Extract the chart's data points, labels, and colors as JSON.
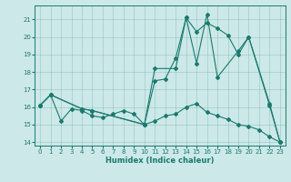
{
  "title": "",
  "xlabel": "Humidex (Indice chaleur)",
  "bg_color": "#cce8e8",
  "line_color": "#1a7a6e",
  "xlim": [
    -0.5,
    23.5
  ],
  "ylim": [
    13.8,
    21.8
  ],
  "yticks": [
    14,
    15,
    16,
    17,
    18,
    19,
    20,
    21
  ],
  "xticks": [
    0,
    1,
    2,
    3,
    4,
    5,
    6,
    7,
    8,
    9,
    10,
    11,
    12,
    13,
    14,
    15,
    16,
    17,
    18,
    19,
    20,
    21,
    22,
    23
  ],
  "line1": {
    "x": [
      0,
      1,
      2,
      3,
      4,
      5,
      6,
      7,
      8,
      9,
      10,
      11,
      12,
      13,
      14,
      15,
      16,
      17,
      18,
      19,
      20,
      21,
      22,
      23
    ],
    "y": [
      16.1,
      16.7,
      15.2,
      15.9,
      15.8,
      15.5,
      15.4,
      15.6,
      15.8,
      15.6,
      15.0,
      15.2,
      15.5,
      15.6,
      16.0,
      16.2,
      15.7,
      15.5,
      15.3,
      15.0,
      14.9,
      14.7,
      14.3,
      14.0
    ]
  },
  "line2": {
    "x": [
      0,
      1,
      4,
      5,
      10,
      11,
      12,
      13,
      14,
      15,
      16,
      17,
      18,
      19,
      20,
      22,
      23
    ],
    "y": [
      16.1,
      16.7,
      15.9,
      15.8,
      15.0,
      17.5,
      17.6,
      18.8,
      21.1,
      20.3,
      20.8,
      20.5,
      20.1,
      19.0,
      20.0,
      16.2,
      14.0
    ]
  },
  "line3": {
    "x": [
      0,
      1,
      4,
      5,
      10,
      11,
      13,
      14,
      15,
      16,
      17,
      19,
      20,
      22,
      23
    ],
    "y": [
      16.1,
      16.7,
      15.9,
      15.8,
      15.0,
      18.2,
      18.2,
      21.1,
      18.5,
      21.3,
      17.7,
      19.2,
      20.0,
      16.1,
      14.0
    ]
  }
}
